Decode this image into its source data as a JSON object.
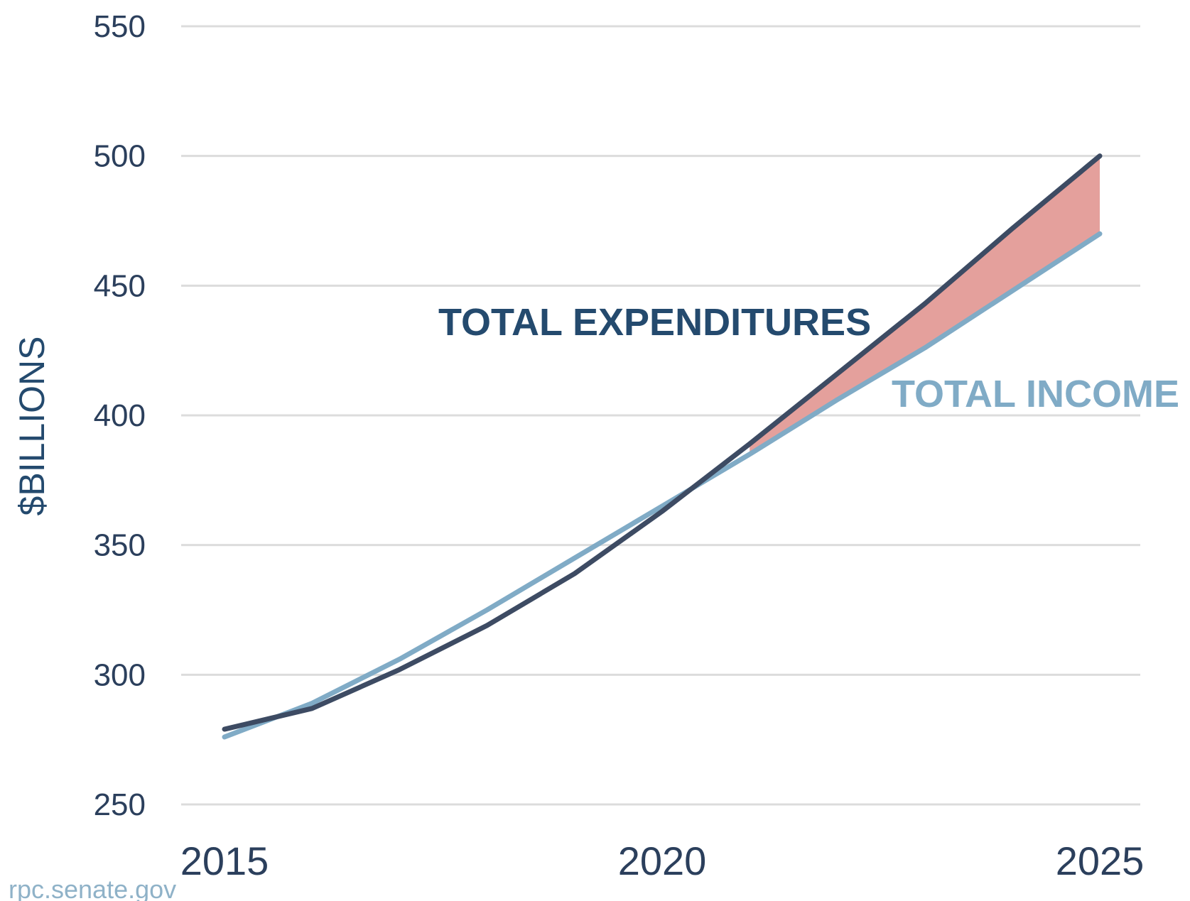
{
  "chart_data": {
    "type": "line",
    "title": "",
    "ylabel": "$BILLIONS",
    "xlabel": "",
    "xlim": [
      2015,
      2025
    ],
    "ylim": [
      250,
      550
    ],
    "x_ticks": [
      "2015",
      "2020",
      "2025"
    ],
    "y_ticks": [
      "250",
      "300",
      "350",
      "400",
      "450",
      "500",
      "550"
    ],
    "grid": true,
    "x": [
      2015,
      2016,
      2017,
      2018,
      2019,
      2020,
      2021,
      2022,
      2023,
      2024,
      2025
    ],
    "series": [
      {
        "name": "TOTAL EXPENDITURES",
        "color": "#3d4b63",
        "values": [
          279,
          287,
          302,
          319,
          339,
          363,
          389,
          416,
          443,
          472,
          500
        ]
      },
      {
        "name": "TOTAL INCOME",
        "color": "#80abc6",
        "values": [
          276,
          289,
          306,
          325,
          345,
          365,
          385,
          406,
          426,
          448,
          470
        ]
      }
    ],
    "deficit_fill_color": "#e4a09c",
    "source": "rpc.senate.gov"
  }
}
